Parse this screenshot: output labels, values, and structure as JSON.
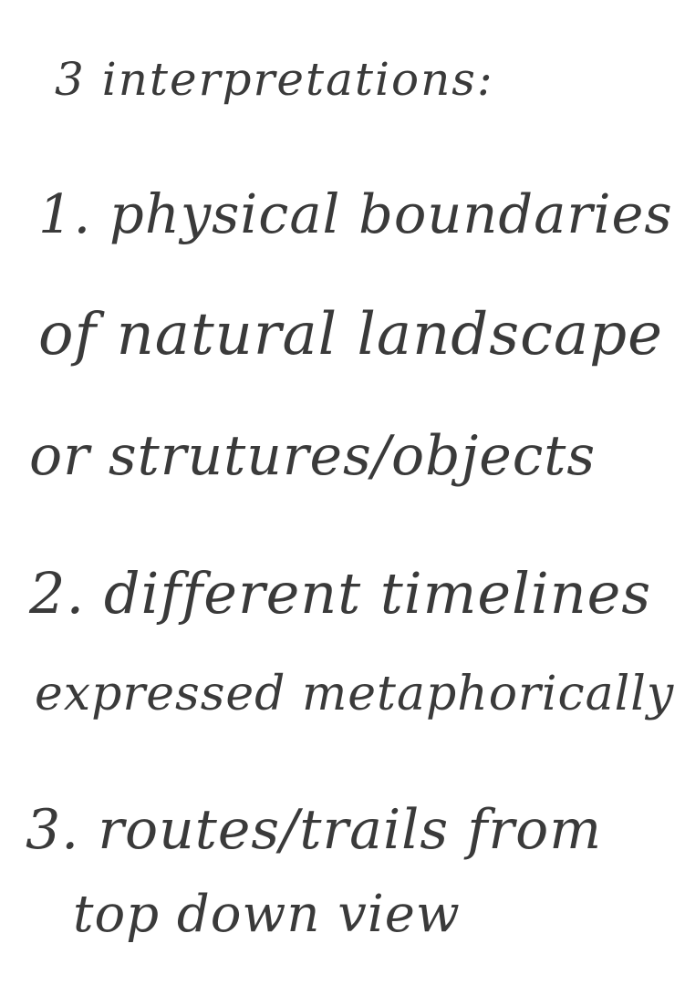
{
  "note": {
    "lines": [
      "3 interpretations:",
      "1. physical boundaries",
      "of natural landscape",
      "or strutures/objects",
      "2. different timelines",
      "expressed metaphorically",
      "3. routes/trails from",
      "top down view"
    ]
  }
}
